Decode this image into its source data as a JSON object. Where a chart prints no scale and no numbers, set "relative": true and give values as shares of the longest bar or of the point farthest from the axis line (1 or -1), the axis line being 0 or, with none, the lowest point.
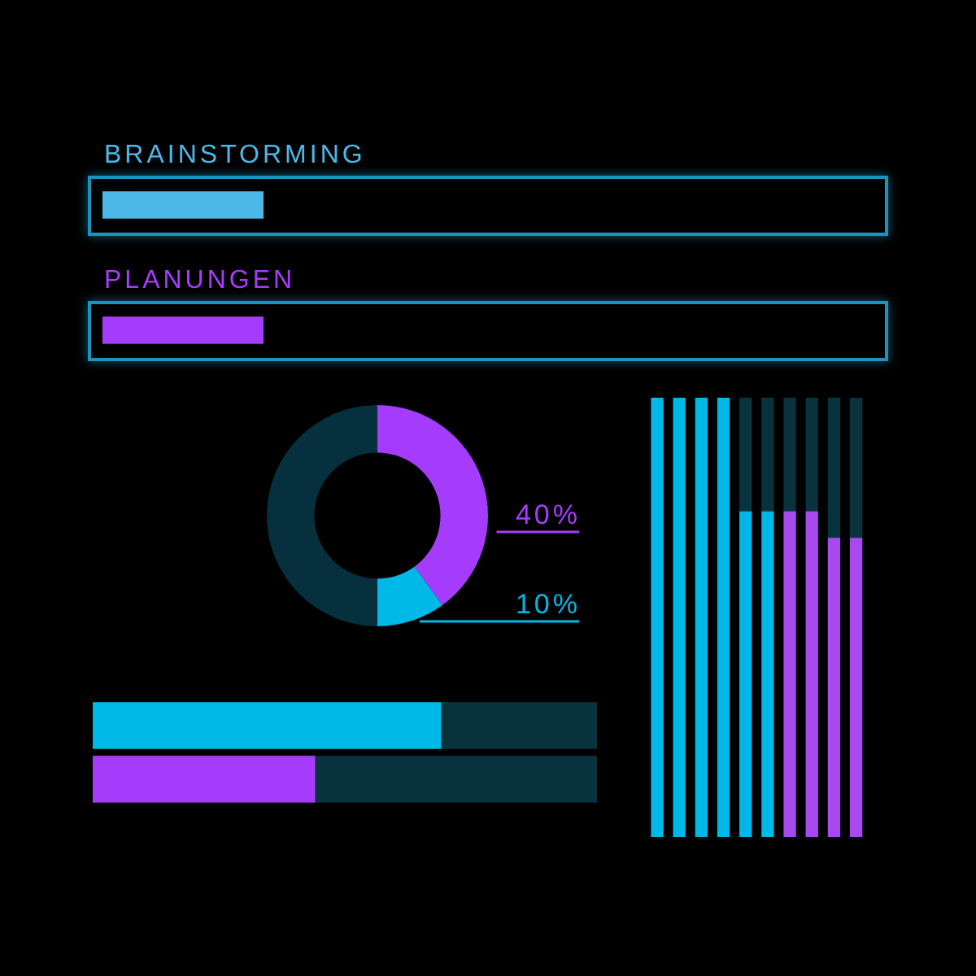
{
  "chart_data": [
    {
      "type": "bar",
      "orientation": "horizontal",
      "relative": true,
      "categories": [
        "BRAINSTORMING",
        "PLANUNGEN"
      ],
      "values": [
        1,
        1
      ],
      "colors": [
        "#4cb8e8",
        "#a63cfb"
      ],
      "tick_labels": "y"
    },
    {
      "type": "donut",
      "categories": [
        null,
        null,
        null
      ],
      "values": [
        40,
        10,
        50
      ],
      "colors": [
        "#a63cfb",
        "#00b8e8",
        "#06303d"
      ],
      "value_labels": [
        "40%",
        "10%",
        null
      ]
    },
    {
      "type": "bar",
      "orientation": "horizontal",
      "stacked": true,
      "relative": true,
      "categories": [
        null,
        null
      ],
      "series": [
        {
          "colors": [
            "#00b8e8",
            "#a63cfb"
          ],
          "values": [
            0.69,
            0.44
          ]
        },
        {
          "color": "#08323e",
          "values": [
            0.31,
            0.56
          ]
        }
      ],
      "tick_labels": false
    },
    {
      "type": "bar",
      "stacked": true,
      "relative": true,
      "categories": [
        null,
        null,
        null,
        null,
        null,
        null,
        null,
        null,
        null,
        null
      ],
      "series": [
        {
          "colors": [
            "#00b8e8",
            "#00b8e8",
            "#00b8e8",
            "#00b8e8",
            "#00b8e8",
            "#00b8e8",
            "#a64af0",
            "#a64af0",
            "#a64af0",
            "#a64af0"
          ],
          "values": [
            1,
            1,
            1,
            1,
            0.74,
            0.74,
            0.74,
            0.74,
            0.68,
            0.68
          ]
        },
        {
          "color": "#08323e",
          "values": [
            0,
            0,
            0,
            0,
            0.26,
            0.26,
            0.26,
            0.26,
            0.32,
            0.32
          ]
        }
      ],
      "tick_labels": false
    }
  ]
}
